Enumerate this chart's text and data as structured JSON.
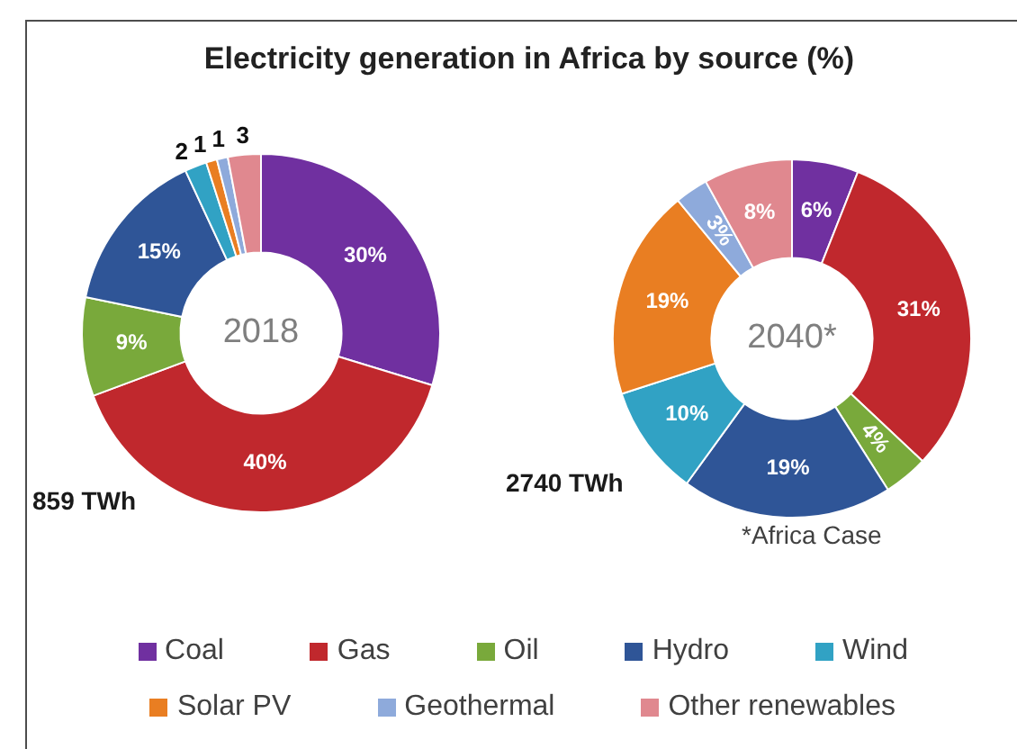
{
  "chart_data": {
    "type": "donut",
    "title": "Electricity generation in Africa by source (%)",
    "categories": [
      "Coal",
      "Gas",
      "Oil",
      "Hydro",
      "Wind",
      "Solar PV",
      "Geothermal",
      "Other renewables"
    ],
    "colors": [
      "#7030a0",
      "#c0282d",
      "#79a93b",
      "#2f5597",
      "#31a2c4",
      "#e97e22",
      "#8eaadb",
      "#e0888f"
    ],
    "series": [
      {
        "name": "2018",
        "values": [
          30,
          40,
          9,
          15,
          2,
          1,
          1,
          3
        ],
        "value_labels": [
          "30%",
          "40%",
          "9%",
          "15%",
          "2",
          "1",
          "1",
          "3"
        ]
      },
      {
        "name": "2040*",
        "values": [
          6,
          31,
          4,
          19,
          10,
          19,
          3,
          8
        ],
        "value_labels": [
          "6%",
          "31%",
          "4%",
          "19%",
          "10%",
          "19%",
          "3%",
          "8%"
        ]
      }
    ],
    "legend": "bottom",
    "annotations": [
      "859 TWh",
      "2740 TWh",
      "*Africa Case"
    ]
  }
}
